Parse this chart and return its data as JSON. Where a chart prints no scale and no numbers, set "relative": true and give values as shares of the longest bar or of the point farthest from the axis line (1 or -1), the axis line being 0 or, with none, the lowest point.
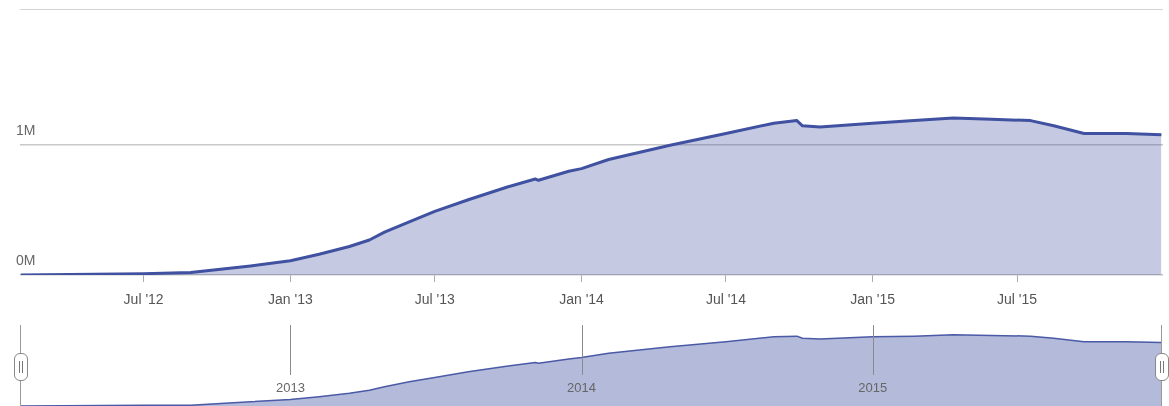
{
  "chart_data": [
    {
      "type": "area",
      "x": [
        "2012-01-29",
        "2012-07-01",
        "2012-08-29",
        "2012-11-12",
        "2013-01-01",
        "2013-02-06",
        "2013-03-16",
        "2013-04-10",
        "2013-04-29",
        "2013-05-30",
        "2013-07-01",
        "2013-08-12",
        "2013-10-01",
        "2013-11-04",
        "2013-11-08",
        "2013-12-16",
        "2014-01-01",
        "2014-02-04",
        "2014-04-22",
        "2014-07-01",
        "2014-08-30",
        "2014-09-28",
        "2014-10-05",
        "2014-10-27",
        "2015-01-01",
        "2015-02-22",
        "2015-04-12",
        "2015-05-30",
        "2015-07-18",
        "2015-08-16",
        "2015-09-23",
        "2015-11-15",
        "2015-12-29"
      ],
      "values": [
        0,
        0.01,
        0.02,
        0.07,
        0.11,
        0.16,
        0.22,
        0.27,
        0.33,
        0.41,
        0.49,
        0.58,
        0.68,
        0.74,
        0.73,
        0.8,
        0.82,
        0.89,
        1.0,
        1.09,
        1.17,
        1.19,
        1.15,
        1.14,
        1.17,
        1.19,
        1.21,
        1.2,
        1.19,
        1.15,
        1.09,
        1.09,
        1.08
      ],
      "color": "#3f51a0",
      "xlim": [
        "2012-01-28",
        "2015-12-31"
      ],
      "xticks": [
        {
          "value": "2012-07-01",
          "label": "Jul '12"
        },
        {
          "value": "2013-01-01",
          "label": "Jan '13"
        },
        {
          "value": "2013-07-01",
          "label": "Jul '13"
        },
        {
          "value": "2014-01-01",
          "label": "Jan '14"
        },
        {
          "value": "2014-07-01",
          "label": "Jul '14"
        },
        {
          "value": "2015-01-01",
          "label": "Jan '15"
        },
        {
          "value": "2015-07-01",
          "label": "Jul '15"
        }
      ],
      "ylim": [
        0,
        2.05
      ],
      "yticks": [
        {
          "value": 0,
          "label": "0M"
        },
        {
          "value": 1,
          "label": "1M"
        }
      ],
      "grid": "y"
    },
    {
      "type": "area",
      "relative": true,
      "x": [
        "2012-01-29",
        "2012-07-01",
        "2012-08-29",
        "2012-11-12",
        "2013-01-01",
        "2013-02-06",
        "2013-03-16",
        "2013-04-10",
        "2013-04-29",
        "2013-05-30",
        "2013-07-01",
        "2013-08-12",
        "2013-10-01",
        "2013-11-04",
        "2013-11-08",
        "2013-12-16",
        "2014-01-01",
        "2014-02-04",
        "2014-04-22",
        "2014-07-01",
        "2014-08-30",
        "2014-09-28",
        "2014-10-05",
        "2014-10-27",
        "2015-01-01",
        "2015-02-22",
        "2015-04-12",
        "2015-05-30",
        "2015-07-18",
        "2015-08-16",
        "2015-09-23",
        "2015-11-15",
        "2015-12-29"
      ],
      "values": [
        0,
        0.01,
        0.01,
        0.06,
        0.09,
        0.13,
        0.18,
        0.22,
        0.27,
        0.34,
        0.4,
        0.48,
        0.56,
        0.61,
        0.6,
        0.66,
        0.68,
        0.74,
        0.83,
        0.9,
        0.97,
        0.98,
        0.95,
        0.94,
        0.97,
        0.98,
        1.0,
        0.99,
        0.98,
        0.95,
        0.9,
        0.9,
        0.89
      ],
      "color": "#4a5aa6",
      "xlim": [
        "2012-01-28",
        "2015-12-31"
      ],
      "xticks": [
        {
          "value": "2013-01-01",
          "label": "2013"
        },
        {
          "value": "2014-01-01",
          "label": "2014"
        },
        {
          "value": "2015-01-01",
          "label": "2015"
        }
      ],
      "grid": "x"
    }
  ]
}
